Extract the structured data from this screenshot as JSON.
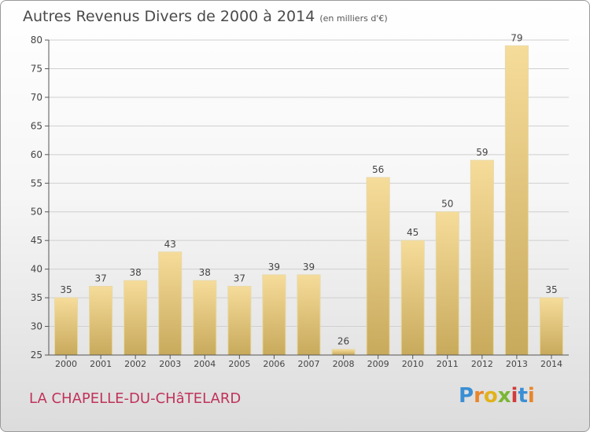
{
  "title": {
    "main": "Autres Revenus Divers de 2000 à 2014",
    "unit": "(en milliers d'€)"
  },
  "commune_name": "LA CHAPELLE-DU-CHâTELARD",
  "logo": {
    "letters": [
      "P",
      "r",
      "o",
      "x",
      "i",
      "t",
      "i"
    ],
    "colors": [
      "#3a8fd4",
      "#e8862a",
      "#e2b21c",
      "#7ab635",
      "#d23b3b",
      "#3a8fd4",
      "#e8862a"
    ]
  },
  "colors": {
    "bar_top": "#f6dc9a",
    "bar_bottom": "#c8aa5c",
    "grid": "#cfcfcf",
    "axis_text": "#444444"
  },
  "chart_data": {
    "type": "bar",
    "categories": [
      "2000",
      "2001",
      "2002",
      "2003",
      "2004",
      "2005",
      "2006",
      "2007",
      "2008",
      "2009",
      "2010",
      "2011",
      "2012",
      "2013",
      "2014"
    ],
    "values": [
      35,
      37,
      38,
      43,
      38,
      37,
      39,
      39,
      26,
      56,
      45,
      50,
      59,
      79,
      35
    ],
    "title": "Autres Revenus Divers de 2000 à 2014",
    "ylim": [
      25,
      80
    ],
    "yticks": [
      25,
      30,
      35,
      40,
      45,
      50,
      55,
      60,
      65,
      70,
      75,
      80
    ],
    "grid": true,
    "data_labels": true
  }
}
